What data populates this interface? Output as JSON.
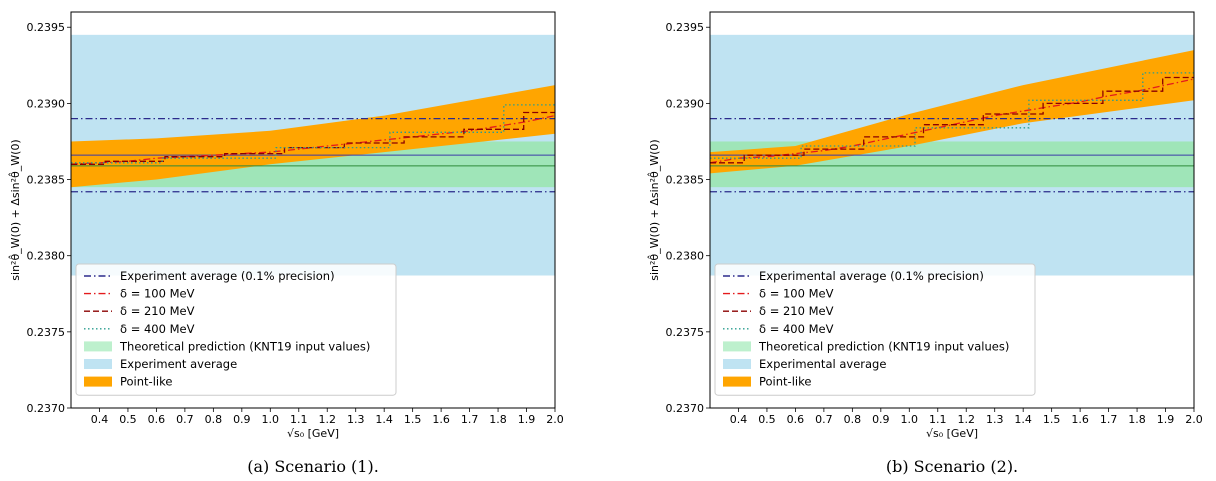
{
  "chart_data": [
    {
      "type": "line",
      "xlabel": "√s₀ [GeV]",
      "ylabel": "sin²θ̂_W(0) + Δsin²θ̂_W(0)",
      "caption": "(a) Scenario (1).",
      "xlim": [
        0.3,
        2.0
      ],
      "ylim": [
        0.237,
        0.2396
      ],
      "xticks": [
        "0.4",
        "0.5",
        "0.6",
        "0.7",
        "0.8",
        "0.9",
        "1.0",
        "1.1",
        "1.2",
        "1.3",
        "1.4",
        "1.5",
        "1.6",
        "1.7",
        "1.8",
        "1.9",
        "2.0"
      ],
      "yticks": [
        "0.2370",
        "0.2375",
        "0.2380",
        "0.2385",
        "0.2390",
        "0.2395"
      ],
      "bands": {
        "experimental": {
          "lo": 0.23787,
          "hi": 0.23945,
          "color": "#bfe3f2"
        },
        "theory": {
          "lo": 0.23845,
          "hi": 0.23875,
          "color": "#9fe5b8"
        },
        "pointlike": {
          "x": [
            0.3,
            0.6,
            1.0,
            1.4,
            2.0
          ],
          "lo": [
            0.23845,
            0.2385,
            0.2386,
            0.23868,
            0.2388
          ],
          "hi": [
            0.23875,
            0.23877,
            0.23882,
            0.23892,
            0.23912
          ],
          "color": "#ffa500"
        }
      },
      "hlines": {
        "exp_upper": 0.2389,
        "exp_lower": 0.23842,
        "exp_center": 0.23866,
        "theory_center": 0.23859
      },
      "series": [
        {
          "name": "δ = 100 MeV",
          "color": "#e41a1c",
          "dash": "dashdot",
          "x": [
            0.3,
            0.4,
            0.5,
            0.6,
            0.7,
            0.8,
            0.9,
            1.0,
            1.1,
            1.2,
            1.3,
            1.4,
            1.5,
            1.6,
            1.7,
            1.8,
            1.9,
            2.0
          ],
          "y": [
            0.2386,
            0.23861,
            0.23862,
            0.23864,
            0.23865,
            0.23866,
            0.23867,
            0.23868,
            0.2387,
            0.23872,
            0.23874,
            0.23876,
            0.23878,
            0.2388,
            0.23882,
            0.23885,
            0.23888,
            0.23892
          ]
        },
        {
          "name": "δ = 210 MeV",
          "color": "#8b0000",
          "dash": "dashed",
          "x": [
            0.3,
            0.42,
            0.42,
            0.63,
            0.63,
            0.84,
            0.84,
            1.05,
            1.05,
            1.26,
            1.26,
            1.47,
            1.47,
            1.68,
            1.68,
            1.89,
            1.89,
            2.0
          ],
          "y": [
            0.2386,
            0.2386,
            0.23862,
            0.23862,
            0.23865,
            0.23865,
            0.23867,
            0.23867,
            0.23871,
            0.23871,
            0.23874,
            0.23874,
            0.23878,
            0.23878,
            0.23883,
            0.23883,
            0.23894,
            0.23894
          ]
        },
        {
          "name": "δ = 400 MeV",
          "color": "#2a9d8f",
          "dash": "dotted",
          "x": [
            0.3,
            0.62,
            0.62,
            1.02,
            1.02,
            1.42,
            1.42,
            1.82,
            1.82,
            2.0
          ],
          "y": [
            0.23861,
            0.23861,
            0.23864,
            0.23864,
            0.23871,
            0.23871,
            0.23881,
            0.23881,
            0.23899,
            0.23899
          ]
        }
      ],
      "legend": [
        {
          "label": "Experiment average (0.1% precision)",
          "kind": "line",
          "color": "#2b2b8c",
          "dash": "dashdot"
        },
        {
          "label": "δ = 100 MeV",
          "kind": "line",
          "color": "#e41a1c",
          "dash": "dashdot"
        },
        {
          "label": "δ = 210 MeV",
          "kind": "line",
          "color": "#8b0000",
          "dash": "dashed"
        },
        {
          "label": "δ = 400 MeV",
          "kind": "line",
          "color": "#2a9d8f",
          "dash": "dotted"
        },
        {
          "label": "Theoretical prediction (KNT19 input values)",
          "kind": "patch",
          "color": "#bdf0cd"
        },
        {
          "label": "Experiment average",
          "kind": "patch",
          "color": "#bfe3f2"
        },
        {
          "label": "Point-like",
          "kind": "patch",
          "color": "#ffa500"
        }
      ]
    },
    {
      "type": "line",
      "xlabel": "√s₀ [GeV]",
      "ylabel": "sin²θ̂_W(0) + Δsin²θ̂_W(0)",
      "caption": "(b) Scenario (2).",
      "xlim": [
        0.3,
        2.0
      ],
      "ylim": [
        0.237,
        0.2396
      ],
      "xticks": [
        "0.4",
        "0.5",
        "0.6",
        "0.7",
        "0.8",
        "0.9",
        "1.0",
        "1.1",
        "1.2",
        "1.3",
        "1.4",
        "1.5",
        "1.6",
        "1.7",
        "1.8",
        "1.9",
        "2.0"
      ],
      "yticks": [
        "0.2370",
        "0.2375",
        "0.2380",
        "0.2385",
        "0.2390",
        "0.2395"
      ],
      "bands": {
        "experimental": {
          "lo": 0.23787,
          "hi": 0.23945,
          "color": "#bfe3f2"
        },
        "theory": {
          "lo": 0.23845,
          "hi": 0.23875,
          "color": "#9fe5b8"
        },
        "pointlike": {
          "x": [
            0.3,
            0.6,
            1.0,
            1.4,
            2.0
          ],
          "lo": [
            0.23854,
            0.23859,
            0.23872,
            0.23887,
            0.23902
          ],
          "hi": [
            0.23868,
            0.23872,
            0.23893,
            0.23912,
            0.23935
          ],
          "color": "#ffa500"
        }
      },
      "hlines": {
        "exp_upper": 0.2389,
        "exp_lower": 0.23842,
        "exp_center": 0.23866,
        "theory_center": 0.23859
      },
      "series": [
        {
          "name": "δ = 100 MeV",
          "color": "#e41a1c",
          "dash": "dashdot",
          "x": [
            0.3,
            0.4,
            0.5,
            0.6,
            0.7,
            0.8,
            0.9,
            1.0,
            1.1,
            1.2,
            1.3,
            1.4,
            1.5,
            1.6,
            1.7,
            1.8,
            1.9,
            2.0
          ],
          "y": [
            0.23861,
            0.23864,
            0.23865,
            0.23867,
            0.23869,
            0.23872,
            0.23876,
            0.2388,
            0.23884,
            0.23888,
            0.23892,
            0.23895,
            0.23898,
            0.23901,
            0.23905,
            0.23908,
            0.23912,
            0.23916
          ]
        },
        {
          "name": "δ = 210 MeV",
          "color": "#8b0000",
          "dash": "dashed",
          "x": [
            0.3,
            0.42,
            0.42,
            0.63,
            0.63,
            0.84,
            0.84,
            1.05,
            1.05,
            1.26,
            1.26,
            1.47,
            1.47,
            1.68,
            1.68,
            1.89,
            1.89,
            2.0
          ],
          "y": [
            0.23861,
            0.23861,
            0.23866,
            0.23866,
            0.2387,
            0.2387,
            0.23878,
            0.23878,
            0.23886,
            0.23886,
            0.23893,
            0.23893,
            0.239,
            0.239,
            0.23908,
            0.23908,
            0.23917,
            0.23917
          ]
        },
        {
          "name": "δ = 400 MeV",
          "color": "#2a9d8f",
          "dash": "dotted",
          "x": [
            0.3,
            0.62,
            0.62,
            1.02,
            1.02,
            1.42,
            1.42,
            1.82,
            1.82,
            2.0
          ],
          "y": [
            0.23864,
            0.23864,
            0.23872,
            0.23872,
            0.23884,
            0.23884,
            0.23902,
            0.23902,
            0.2392,
            0.2392
          ]
        }
      ],
      "legend": [
        {
          "label": "Experimental average (0.1% precision)",
          "kind": "line",
          "color": "#2b2b8c",
          "dash": "dashdot"
        },
        {
          "label": "δ = 100 MeV",
          "kind": "line",
          "color": "#e41a1c",
          "dash": "dashdot"
        },
        {
          "label": "δ = 210 MeV",
          "kind": "line",
          "color": "#8b0000",
          "dash": "dashed"
        },
        {
          "label": "δ = 400 MeV",
          "kind": "line",
          "color": "#2a9d8f",
          "dash": "dotted"
        },
        {
          "label": "Theoretical prediction (KNT19 input values)",
          "kind": "patch",
          "color": "#bdf0cd"
        },
        {
          "label": "Experimental average",
          "kind": "patch",
          "color": "#bfe3f2"
        },
        {
          "label": "Point-like",
          "kind": "patch",
          "color": "#ffa500"
        }
      ]
    }
  ]
}
